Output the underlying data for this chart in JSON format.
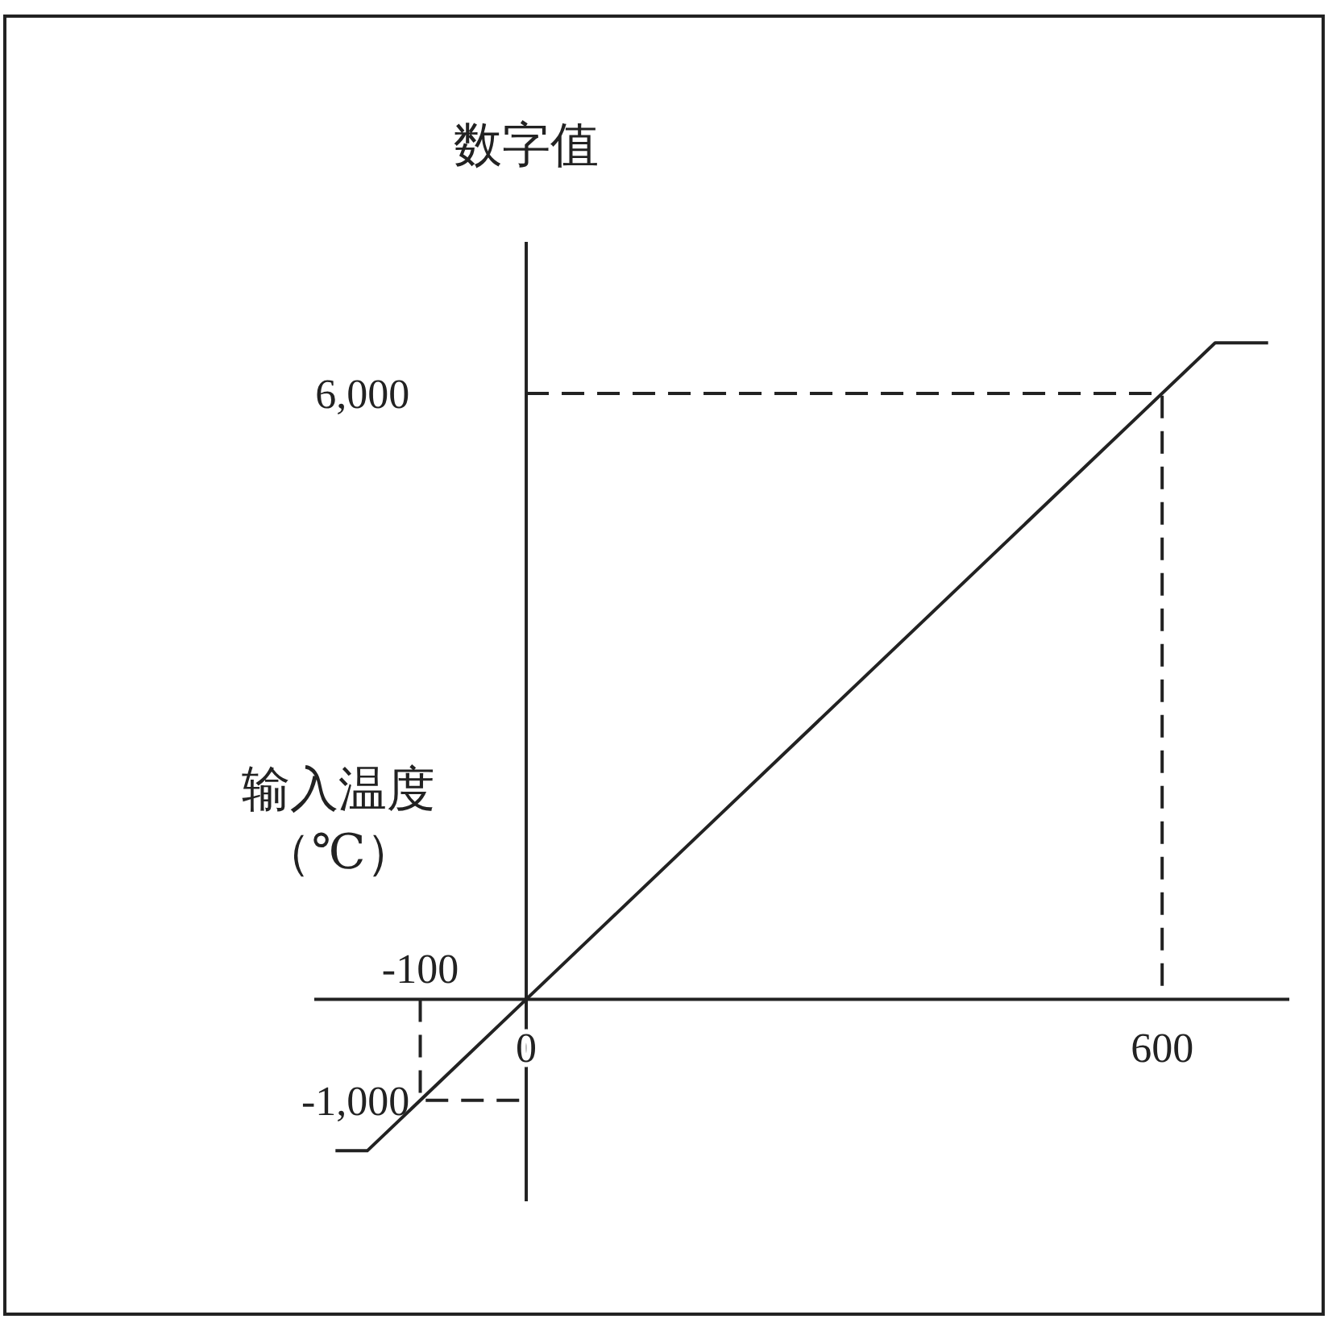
{
  "chart_data": {
    "type": "line",
    "xlabel": "输入温度（℃）",
    "ylabel": "数字值",
    "xlim": [
      -200,
      720
    ],
    "ylim": [
      -2000,
      7500
    ],
    "xticks": [
      0,
      600
    ],
    "yticks": [
      {
        "value": -1000,
        "label": "-1,000"
      },
      {
        "value": 6000,
        "label": "6,000"
      }
    ],
    "annotations": [
      {
        "text": "-100",
        "x": -100,
        "y": 0
      }
    ],
    "series": [
      {
        "color": "#222222",
        "line_style": "solid",
        "x": [
          -180,
          -150,
          650,
          700
        ],
        "values": [
          -1500,
          -1500,
          6500,
          6500
        ]
      },
      {
        "color": "#222222",
        "line_style": "dashed",
        "x": [
          0,
          600,
          600
        ],
        "values": [
          6000,
          6000,
          0
        ]
      },
      {
        "color": "#222222",
        "line_style": "dashed",
        "x": [
          -100,
          -100,
          0
        ],
        "values": [
          0,
          -1000,
          -1000
        ]
      }
    ]
  }
}
